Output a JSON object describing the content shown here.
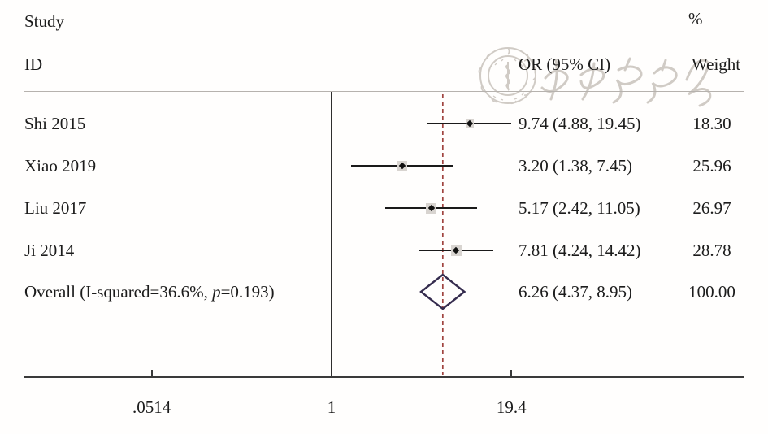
{
  "header": {
    "study": "Study",
    "id": "ID",
    "percent": "%",
    "or_ci": "OR (95% CI)",
    "weight": "Weight"
  },
  "watermark": {
    "label": "中华医学会 (Chinese Medical Association) logo watermark"
  },
  "colors": {
    "text": "#1c1c1c",
    "ci_line": "#1a1a1a",
    "weight_box": "#d8d4d0",
    "marker": "#111111",
    "null_line": "#2e2e2e",
    "axis": "#3a3a3a",
    "header_rule": "#b6b2ae",
    "dashed_overall_line": "#a04440",
    "diamond_outline": "#352c4e",
    "watermark": "#ccc6c0"
  },
  "chart_data": {
    "type": "forest_plot",
    "effect_measure": "OR",
    "x_scale": "log",
    "x_ticks": [
      0.0514,
      1,
      19.4
    ],
    "x_tick_labels": [
      ".0514",
      "1",
      "19.4"
    ],
    "null_line_value": 1,
    "dashed_line_value": 6.26,
    "studies": [
      {
        "id": "Shi 2015",
        "or": 9.74,
        "ci_low": 4.88,
        "ci_high": 19.45,
        "weight": 18.3,
        "or_ci_label": "9.74 (4.88, 19.45)",
        "weight_label": "18.30"
      },
      {
        "id": "Xiao 2019",
        "or": 3.2,
        "ci_low": 1.38,
        "ci_high": 7.45,
        "weight": 25.96,
        "or_ci_label": "3.20 (1.38, 7.45)",
        "weight_label": "25.96"
      },
      {
        "id": "Liu 2017",
        "or": 5.17,
        "ci_low": 2.42,
        "ci_high": 11.05,
        "weight": 26.97,
        "or_ci_label": "5.17 (2.42, 11.05)",
        "weight_label": "26.97"
      },
      {
        "id": "Ji 2014",
        "or": 7.81,
        "ci_low": 4.24,
        "ci_high": 14.42,
        "weight": 28.78,
        "or_ci_label": "7.81 (4.24, 14.42)",
        "weight_label": "28.78"
      }
    ],
    "overall": {
      "label_prefix": "Overall (I-squared=36.6%, ",
      "p": "p",
      "label_suffix": "=0.193)",
      "i_squared": "36.6%",
      "p_value": "0.193",
      "or": 6.26,
      "ci_low": 4.37,
      "ci_high": 8.95,
      "or_ci_label": "6.26 (4.37, 8.95)",
      "weight_label": "100.00"
    }
  }
}
